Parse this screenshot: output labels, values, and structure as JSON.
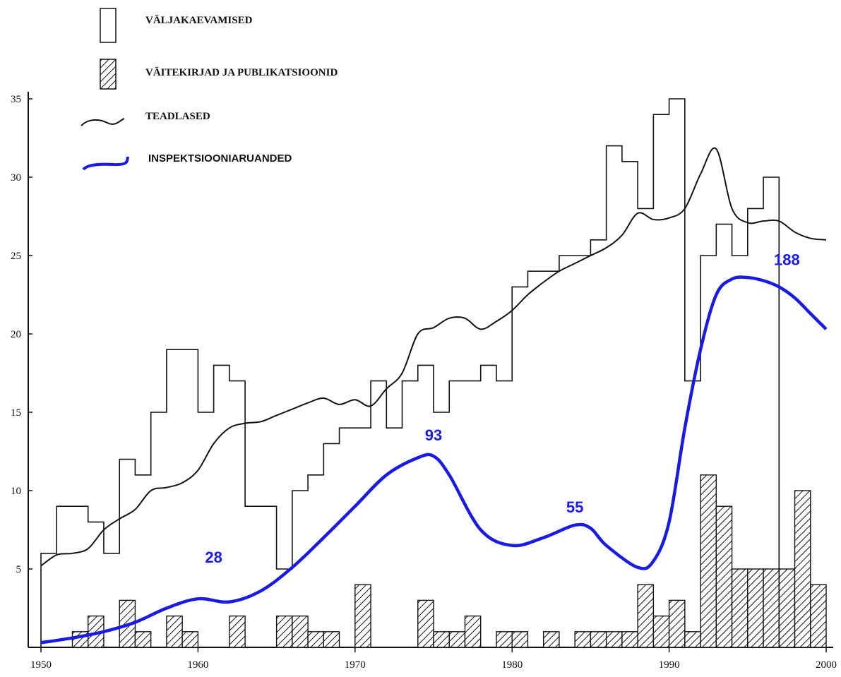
{
  "chart_data": {
    "type": "bar",
    "title": "",
    "xlabel": "",
    "ylabel": "",
    "xlim": [
      1950,
      2000
    ],
    "ylim": [
      0,
      35
    ],
    "x_ticks": [
      "1950",
      "1960",
      "1970",
      "1980",
      "1990",
      "2000"
    ],
    "y_ticks": [
      "5",
      "10",
      "15",
      "20",
      "25",
      "30",
      "35"
    ],
    "legend": [
      {
        "key": "excavations",
        "label": "VÄLJAKAEVAMISED",
        "style": "open-bar"
      },
      {
        "key": "theses",
        "label": "VÄITEKIRJAD JA PUBLIKATSIOONID",
        "style": "hatched-bar"
      },
      {
        "key": "scientists",
        "label": "TEADLASED",
        "style": "black-line"
      },
      {
        "key": "reports",
        "label": "INSPEKTSIOONIARUANDED",
        "style": "blue-line"
      }
    ],
    "series": [
      {
        "key": "excavations",
        "type": "step",
        "points": [
          [
            1950,
            6
          ],
          [
            1951,
            9
          ],
          [
            1953,
            8
          ],
          [
            1954,
            6
          ],
          [
            1955,
            12
          ],
          [
            1956,
            11
          ],
          [
            1957,
            15
          ],
          [
            1958,
            19
          ],
          [
            1960,
            15
          ],
          [
            1961,
            18
          ],
          [
            1962,
            17
          ],
          [
            1963,
            9
          ],
          [
            1965,
            5
          ],
          [
            1966,
            10
          ],
          [
            1967,
            11
          ],
          [
            1968,
            13
          ],
          [
            1969,
            14
          ],
          [
            1971,
            17
          ],
          [
            1972,
            14
          ],
          [
            1973,
            17
          ],
          [
            1974,
            18
          ],
          [
            1975,
            15
          ],
          [
            1976,
            17
          ],
          [
            1978,
            18
          ],
          [
            1979,
            17
          ],
          [
            1980,
            23
          ],
          [
            1981,
            24
          ],
          [
            1983,
            25
          ],
          [
            1985,
            26
          ],
          [
            1986,
            32
          ],
          [
            1987,
            31
          ],
          [
            1988,
            28
          ],
          [
            1989,
            34
          ],
          [
            1990,
            35
          ],
          [
            1991,
            17
          ],
          [
            1992,
            25
          ],
          [
            1993,
            27
          ],
          [
            1994,
            25
          ],
          [
            1995,
            28
          ],
          [
            1996,
            30
          ],
          [
            1997,
            0
          ]
        ]
      },
      {
        "key": "theses",
        "type": "bar",
        "x": [
          1952,
          1953,
          1955,
          1956,
          1958,
          1959,
          1962,
          1965,
          1966,
          1967,
          1968,
          1970,
          1974,
          1975,
          1976,
          1977,
          1979,
          1980,
          1982,
          1984,
          1985,
          1986,
          1987,
          1988,
          1989,
          1990,
          1991,
          1992,
          1993,
          1994,
          1995,
          1996,
          1997,
          1998,
          1999
        ],
        "values": [
          1,
          2,
          3,
          1,
          2,
          1,
          2,
          2,
          2,
          1,
          1,
          4,
          3,
          1,
          1,
          2,
          1,
          1,
          1,
          1,
          1,
          1,
          1,
          4,
          2,
          3,
          1,
          11,
          9,
          5,
          5,
          5,
          5,
          10,
          4
        ]
      },
      {
        "key": "scientists",
        "type": "line",
        "x": [
          1950,
          1951,
          1952,
          1953,
          1954,
          1955,
          1956,
          1957,
          1958,
          1959,
          1960,
          1961,
          1962,
          1963,
          1964,
          1965,
          1966,
          1967,
          1968,
          1969,
          1970,
          1971,
          1972,
          1973,
          1974,
          1975,
          1976,
          1977,
          1978,
          1979,
          1980,
          1981,
          1982,
          1983,
          1984,
          1985,
          1986,
          1987,
          1988,
          1989,
          1990,
          1991,
          1992,
          1993,
          1994,
          1995,
          1996,
          1997,
          1998,
          1999,
          2000
        ],
        "values": [
          5.2,
          5.9,
          6,
          6.3,
          7.5,
          8.2,
          8.8,
          10,
          10.2,
          10.5,
          11.3,
          13,
          14,
          14.3,
          14.4,
          14.8,
          15.2,
          15.6,
          15.9,
          15.5,
          15.8,
          15.4,
          16.5,
          17.5,
          20,
          20.4,
          21,
          21,
          20.3,
          20.8,
          21.5,
          22.5,
          23.3,
          24,
          24.5,
          25,
          25.5,
          26.3,
          27.7,
          27.3,
          27.4,
          28,
          30.2,
          31.8,
          28,
          27.1,
          27.2,
          27.2,
          26.5,
          26.1,
          26
        ]
      },
      {
        "key": "reports",
        "type": "line",
        "x": [
          1950,
          1952,
          1954,
          1956,
          1958,
          1960,
          1962,
          1964,
          1966,
          1968,
          1970,
          1972,
          1974,
          1975,
          1976,
          1978,
          1980,
          1982,
          1984,
          1985,
          1986,
          1988,
          1989,
          1990,
          1991,
          1992,
          1993,
          1994,
          1995,
          1996,
          1997,
          1998,
          1999,
          2000
        ],
        "values": [
          0.3,
          0.6,
          1,
          1.6,
          2.5,
          3.1,
          2.9,
          3.6,
          5.1,
          7,
          9,
          11,
          12.1,
          12.2,
          11,
          7.5,
          6.5,
          7,
          7.8,
          7.6,
          6.5,
          5.1,
          5.5,
          8,
          14,
          19,
          22.5,
          23.5,
          23.6,
          23.4,
          23,
          22.3,
          21.3,
          20.3
        ]
      }
    ],
    "annotations": [
      {
        "x": 1961,
        "y": 5.4,
        "text": "28"
      },
      {
        "x": 1975,
        "y": 13.2,
        "text": "93"
      },
      {
        "x": 1984,
        "y": 8.6,
        "text": "55"
      },
      {
        "x": 1997.5,
        "y": 24.4,
        "text": "188"
      }
    ]
  }
}
